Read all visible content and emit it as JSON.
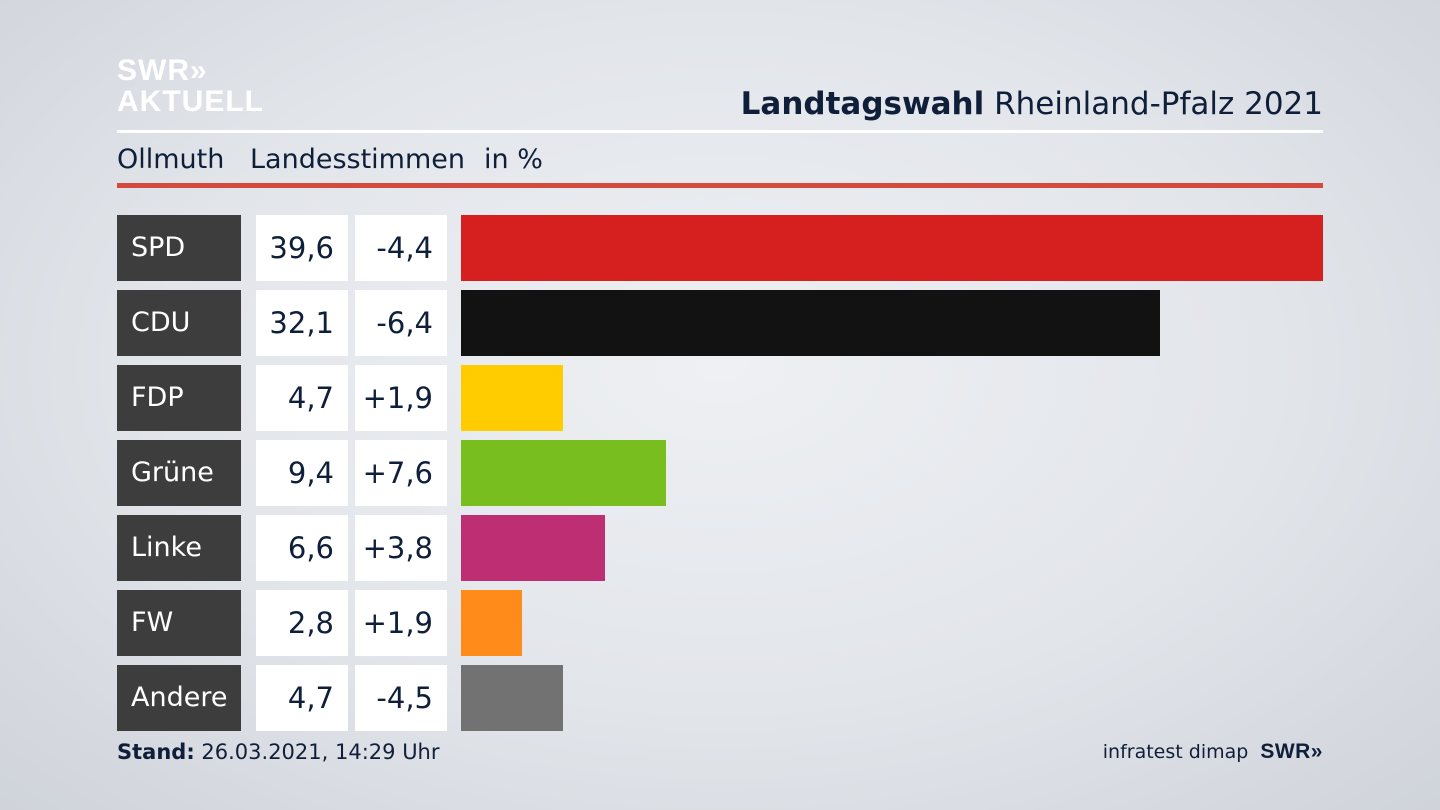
{
  "brand": {
    "line1": "SWR»",
    "line2": "AKTUELL"
  },
  "title": {
    "bold": "Landtagswahl",
    "rest": "Rheinland-Pfalz 2021"
  },
  "subhead": {
    "place": "Ollmuth",
    "metric": "Landesstimmen",
    "unit": "in %"
  },
  "footer": {
    "stand_label": "Stand:",
    "stand_value": "26.03.2021, 14:29 Uhr",
    "source": "infratest dimap",
    "brand": "SWR»"
  },
  "colors": {
    "accent_red": "#d44a3d",
    "label_bg": "#3d3d3d"
  },
  "chart_data": {
    "type": "bar",
    "orientation": "horizontal",
    "title": "Landtagswahl Rheinland-Pfalz 2021",
    "categories": [
      "SPD",
      "CDU",
      "FDP",
      "Grüne",
      "Linke",
      "FW",
      "Andere"
    ],
    "values": [
      39.6,
      32.1,
      4.7,
      9.4,
      6.6,
      2.8,
      4.7
    ],
    "value_labels": [
      "39,6",
      "32,1",
      "4,7",
      "9,4",
      "6,6",
      "2,8",
      "4,7"
    ],
    "diff_labels": [
      "-4,4",
      "-6,4",
      "+1,9",
      "+7,6",
      "+3,8",
      "+1,9",
      "-4,5"
    ],
    "diffs": [
      -4.4,
      -6.4,
      1.9,
      7.6,
      3.8,
      1.9,
      -4.5
    ],
    "bar_colors": [
      "#d61f1f",
      "#121212",
      "#ffcc00",
      "#78be1e",
      "#be2e72",
      "#ff8c1a",
      "#727272"
    ],
    "xlim": [
      0,
      39.6
    ]
  }
}
